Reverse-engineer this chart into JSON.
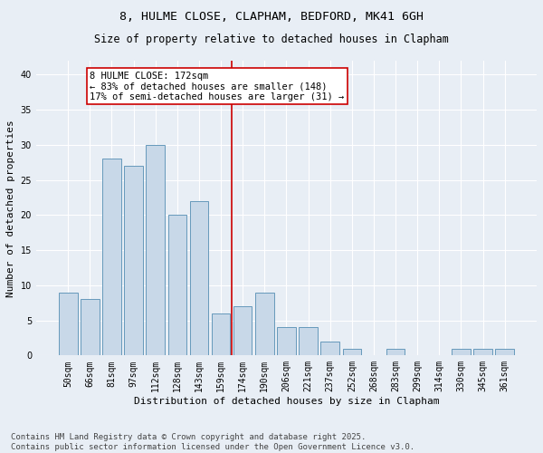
{
  "title": "8, HULME CLOSE, CLAPHAM, BEDFORD, MK41 6GH",
  "subtitle": "Size of property relative to detached houses in Clapham",
  "xlabel": "Distribution of detached houses by size in Clapham",
  "ylabel": "Number of detached properties",
  "bar_labels": [
    "50sqm",
    "66sqm",
    "81sqm",
    "97sqm",
    "112sqm",
    "128sqm",
    "143sqm",
    "159sqm",
    "174sqm",
    "190sqm",
    "206sqm",
    "221sqm",
    "237sqm",
    "252sqm",
    "268sqm",
    "283sqm",
    "299sqm",
    "314sqm",
    "330sqm",
    "345sqm",
    "361sqm"
  ],
  "bar_values": [
    9,
    8,
    28,
    27,
    30,
    20,
    22,
    6,
    7,
    9,
    4,
    4,
    2,
    1,
    0,
    1,
    0,
    0,
    1,
    1,
    1
  ],
  "bar_color": "#c8d8e8",
  "bar_edge_color": "#6699bb",
  "vline_index": 8,
  "vline_color": "#cc0000",
  "annotation_text": "8 HULME CLOSE: 172sqm\n← 83% of detached houses are smaller (148)\n17% of semi-detached houses are larger (31) →",
  "annotation_box_color": "#ffffff",
  "annotation_box_edge_color": "#cc0000",
  "ylim": [
    0,
    42
  ],
  "yticks": [
    0,
    5,
    10,
    15,
    20,
    25,
    30,
    35,
    40
  ],
  "background_color": "#e8eef5",
  "plot_bg_color": "#e8eef5",
  "footer_text": "Contains HM Land Registry data © Crown copyright and database right 2025.\nContains public sector information licensed under the Open Government Licence v3.0.",
  "title_fontsize": 9.5,
  "subtitle_fontsize": 8.5,
  "axis_label_fontsize": 8,
  "tick_fontsize": 7,
  "annotation_fontsize": 7.5,
  "footer_fontsize": 6.5
}
